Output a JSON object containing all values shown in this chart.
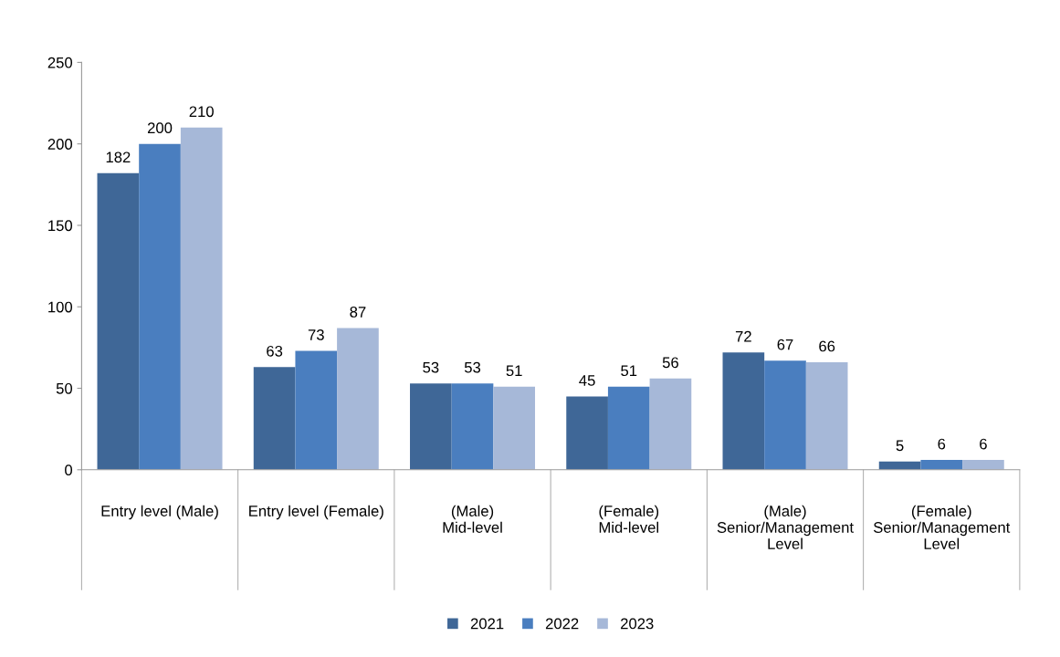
{
  "chart_data": {
    "type": "bar",
    "categories": [
      "Entry level (Male)",
      "Entry level (Female)",
      "(Male)\nMid-level",
      "(Female)\nMid-level",
      "(Male)\nSenior/Management\nLevel",
      "(Female)\nSenior/Management\nLevel"
    ],
    "series": [
      {
        "name": "2021",
        "color": "#3f6797",
        "values": [
          182,
          63,
          53,
          45,
          72,
          5
        ]
      },
      {
        "name": "2022",
        "color": "#4a7ebf",
        "values": [
          200,
          73,
          53,
          51,
          67,
          6
        ]
      },
      {
        "name": "2023",
        "color": "#a6b8d8",
        "values": [
          210,
          87,
          51,
          56,
          66,
          6
        ]
      }
    ],
    "ylim": [
      0,
      250
    ],
    "yticks": [
      0,
      50,
      100,
      150,
      200,
      250
    ],
    "grid": false,
    "legend": "bottom",
    "data_labels": true
  }
}
